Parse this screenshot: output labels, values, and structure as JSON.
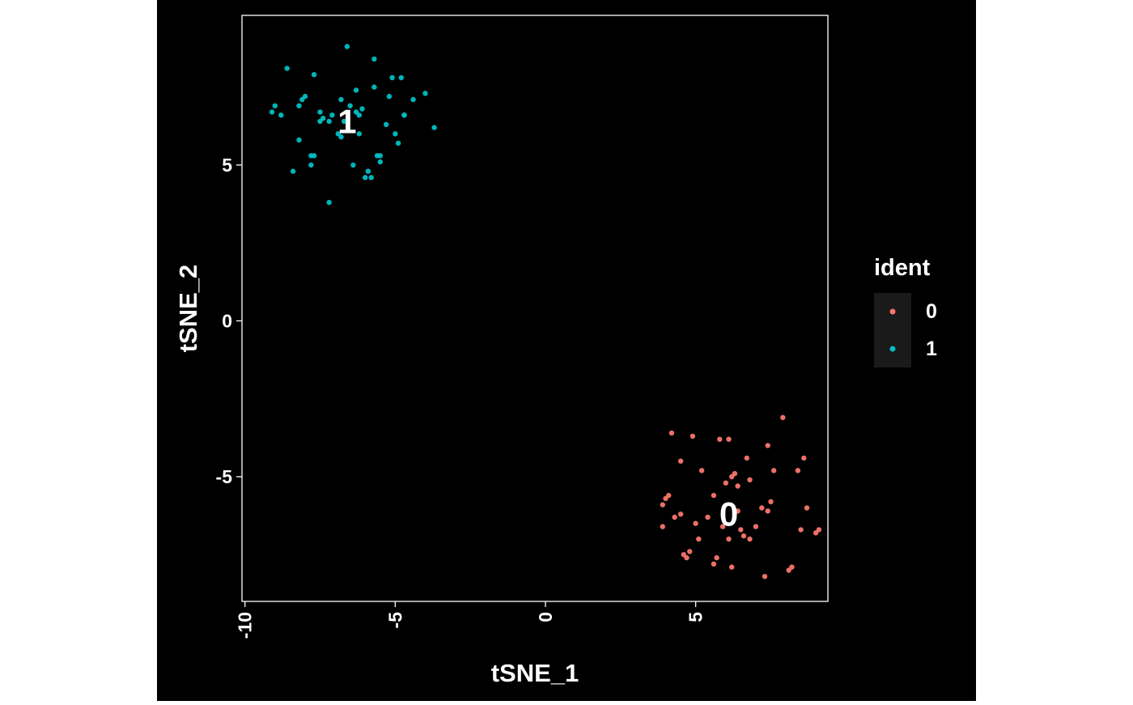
{
  "chart_data": {
    "type": "scatter",
    "xlabel": "tSNE_1",
    "ylabel": "tSNE_2",
    "xlim": [
      -10.1,
      9.4
    ],
    "ylim": [
      -9.0,
      9.8
    ],
    "x_ticks": [
      -10,
      -5,
      0,
      5
    ],
    "y_ticks": [
      -5,
      0,
      5
    ],
    "grid": false,
    "legend": {
      "title": "ident",
      "placement": "right"
    },
    "series": [
      {
        "name": "0",
        "color": "#F8766D",
        "cluster_label": "0",
        "label_at": [
          6.1,
          -6.2
        ],
        "points": [
          [
            3.9,
            -6.6
          ],
          [
            4.0,
            -5.7
          ],
          [
            4.1,
            -5.6
          ],
          [
            4.2,
            -3.6
          ],
          [
            4.3,
            -6.3
          ],
          [
            4.5,
            -4.5
          ],
          [
            4.5,
            -6.2
          ],
          [
            4.6,
            -7.5
          ],
          [
            4.7,
            -7.6
          ],
          [
            4.8,
            -7.4
          ],
          [
            4.9,
            -3.7
          ],
          [
            5.1,
            -7.0
          ],
          [
            5.2,
            -4.8
          ],
          [
            5.4,
            -6.3
          ],
          [
            5.6,
            -7.8
          ],
          [
            5.7,
            -7.6
          ],
          [
            5.6,
            -5.6
          ],
          [
            5.8,
            -3.8
          ],
          [
            5.9,
            -6.6
          ],
          [
            6.0,
            -5.2
          ],
          [
            6.1,
            -3.8
          ],
          [
            6.1,
            -7.0
          ],
          [
            6.2,
            -5.0
          ],
          [
            6.3,
            -4.9
          ],
          [
            6.4,
            -5.3
          ],
          [
            6.5,
            -6.7
          ],
          [
            6.6,
            -6.9
          ],
          [
            6.7,
            -4.4
          ],
          [
            6.8,
            -7.0
          ],
          [
            6.8,
            -5.1
          ],
          [
            7.2,
            -6.0
          ],
          [
            7.3,
            -8.2
          ],
          [
            7.4,
            -4.0
          ],
          [
            7.4,
            -6.1
          ],
          [
            7.5,
            -5.8
          ],
          [
            7.6,
            -4.8
          ],
          [
            7.9,
            -3.1
          ],
          [
            8.1,
            -8.0
          ],
          [
            8.2,
            -7.9
          ],
          [
            8.4,
            -4.8
          ],
          [
            8.5,
            -6.7
          ],
          [
            8.6,
            -4.4
          ],
          [
            8.7,
            -6.0
          ],
          [
            9.0,
            -6.8
          ],
          [
            9.1,
            -6.7
          ],
          [
            6.4,
            -6.1
          ],
          [
            5.0,
            -6.5
          ],
          [
            3.9,
            -5.9
          ],
          [
            6.2,
            -7.9
          ],
          [
            7.0,
            -6.6
          ]
        ]
      },
      {
        "name": "1",
        "color": "#00BFC4",
        "cluster_label": "1",
        "label_at": [
          -6.6,
          6.4
        ],
        "points": [
          [
            -9.1,
            6.7
          ],
          [
            -9.0,
            6.9
          ],
          [
            -8.8,
            6.6
          ],
          [
            -8.6,
            8.1
          ],
          [
            -8.4,
            4.8
          ],
          [
            -8.2,
            5.8
          ],
          [
            -8.2,
            6.9
          ],
          [
            -8.1,
            7.1
          ],
          [
            -8.0,
            7.2
          ],
          [
            -7.8,
            5.3
          ],
          [
            -7.8,
            5.0
          ],
          [
            -7.7,
            5.3
          ],
          [
            -7.7,
            7.9
          ],
          [
            -7.5,
            6.7
          ],
          [
            -7.5,
            6.4
          ],
          [
            -7.4,
            6.5
          ],
          [
            -7.2,
            6.4
          ],
          [
            -7.2,
            3.8
          ],
          [
            -7.1,
            6.6
          ],
          [
            -6.9,
            6.0
          ],
          [
            -6.8,
            7.1
          ],
          [
            -6.8,
            5.9
          ],
          [
            -6.7,
            6.4
          ],
          [
            -6.6,
            8.8
          ],
          [
            -6.5,
            6.9
          ],
          [
            -6.4,
            5.0
          ],
          [
            -6.3,
            7.4
          ],
          [
            -6.2,
            6.0
          ],
          [
            -6.2,
            6.6
          ],
          [
            -6.1,
            6.8
          ],
          [
            -6.0,
            4.6
          ],
          [
            -5.9,
            4.8
          ],
          [
            -5.8,
            4.6
          ],
          [
            -5.7,
            7.5
          ],
          [
            -5.7,
            8.4
          ],
          [
            -5.6,
            5.3
          ],
          [
            -5.5,
            5.3
          ],
          [
            -5.5,
            5.1
          ],
          [
            -5.3,
            6.3
          ],
          [
            -5.2,
            7.2
          ],
          [
            -5.1,
            7.8
          ],
          [
            -5.0,
            6.0
          ],
          [
            -4.9,
            5.7
          ],
          [
            -4.8,
            7.8
          ],
          [
            -4.7,
            6.6
          ],
          [
            -4.7,
            6.6
          ],
          [
            -4.4,
            7.1
          ],
          [
            -4.0,
            7.3
          ],
          [
            -3.7,
            6.2
          ],
          [
            -6.3,
            6.7
          ]
        ]
      }
    ]
  }
}
